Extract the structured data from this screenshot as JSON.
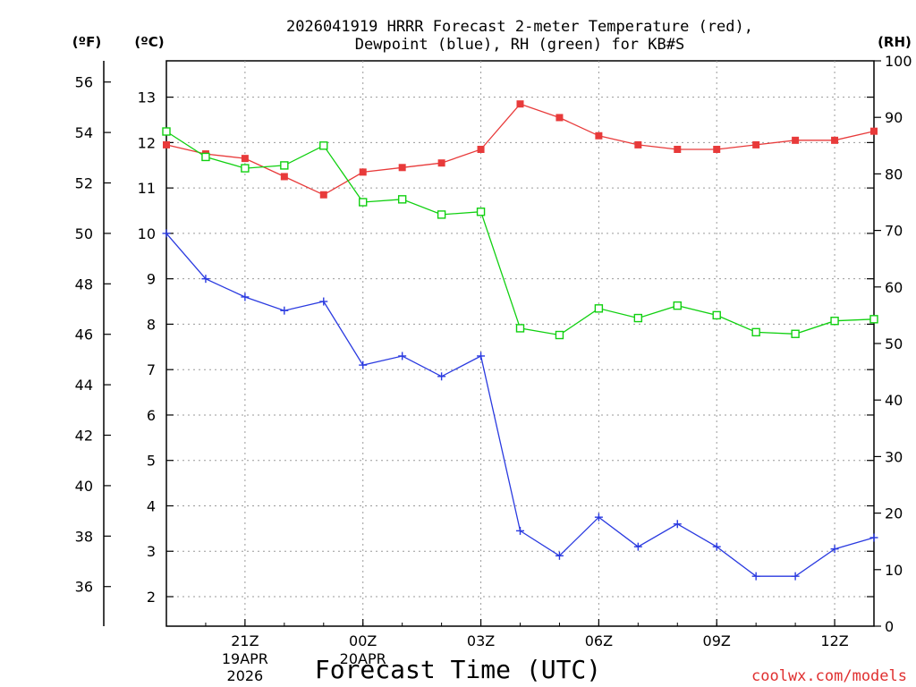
{
  "chart_data": {
    "type": "line",
    "title": "2026041919 HRRR Forecast 2-meter Temperature (red),",
    "title_line2": "Dewpoint (blue), RH (green) for KB#S",
    "xlabel": "Forecast Time (UTC)",
    "credit": "coolwx.com/models",
    "units": {
      "fahrenheit": "(ºF)",
      "celsius": "(ºC)",
      "rh": "(RH)"
    },
    "x": [
      19,
      20,
      21,
      22,
      23,
      24,
      25,
      26,
      27,
      28,
      29,
      30,
      31,
      32,
      33,
      34,
      35,
      36,
      37
    ],
    "x_unit": "hours after 00Z 19APR2026",
    "xlim": [
      19,
      37
    ],
    "x_ticks": [
      {
        "x": 21,
        "label": "21Z",
        "sub": [
          "19APR",
          "2026"
        ]
      },
      {
        "x": 24,
        "label": "00Z",
        "sub": [
          "20APR"
        ]
      },
      {
        "x": 27,
        "label": "03Z",
        "sub": []
      },
      {
        "x": 30,
        "label": "06Z",
        "sub": []
      },
      {
        "x": 33,
        "label": "09Z",
        "sub": []
      },
      {
        "x": 36,
        "label": "12Z",
        "sub": []
      }
    ],
    "celsius_axis": {
      "ylim": [
        1.35,
        13.8
      ],
      "ticks": [
        2,
        3,
        4,
        5,
        6,
        7,
        8,
        9,
        10,
        11,
        12,
        13
      ]
    },
    "fahrenheit_axis": {
      "ticks": [
        36,
        38,
        40,
        42,
        44,
        46,
        48,
        50,
        52,
        54,
        56
      ]
    },
    "rh_axis": {
      "ylim": [
        0,
        100
      ],
      "ticks": [
        0,
        10,
        20,
        30,
        40,
        50,
        60,
        70,
        80,
        90,
        100
      ]
    },
    "grid": true,
    "series": [
      {
        "name": "Temperature",
        "axis": "celsius",
        "color": "#e83a3a",
        "marker": "filled-square",
        "values": [
          11.95,
          11.75,
          11.65,
          11.25,
          10.85,
          11.35,
          11.45,
          11.55,
          11.85,
          12.85,
          12.55,
          12.15,
          11.95,
          11.85,
          11.85,
          11.95,
          12.05,
          12.05,
          12.25
        ]
      },
      {
        "name": "Dewpoint",
        "axis": "celsius",
        "color": "#2a3ae0",
        "marker": "plus",
        "values": [
          10.0,
          9.0,
          8.6,
          8.3,
          8.5,
          7.1,
          7.3,
          6.85,
          7.3,
          3.45,
          2.9,
          3.75,
          3.1,
          3.6,
          3.1,
          2.45,
          2.45,
          3.05,
          3.3
        ]
      },
      {
        "name": "RH",
        "axis": "rh",
        "color": "#10d010",
        "marker": "open-square",
        "values": [
          87.5,
          83,
          81,
          81.5,
          85,
          75,
          75.5,
          72.8,
          73.3,
          52.7,
          51.5,
          56.2,
          54.5,
          56.7,
          55,
          52,
          51.7,
          54,
          54.3
        ]
      }
    ]
  }
}
